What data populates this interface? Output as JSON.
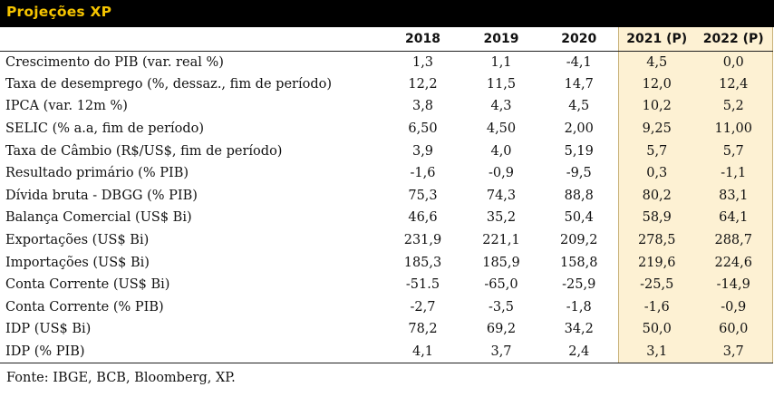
{
  "title": "Projeções XP",
  "columns": [
    "2018",
    "2019",
    "2020",
    "2021 (P)",
    "2022 (P)"
  ],
  "rows": [
    {
      "label": "Crescimento do PIB (var. real %)",
      "values": [
        "1,3",
        "1,1",
        "-4,1",
        "4,5",
        "0,0"
      ]
    },
    {
      "label": "Taxa de desemprego (%, dessaz., fim de período)",
      "values": [
        "12,2",
        "11,5",
        "14,7",
        "12,0",
        "12,4"
      ]
    },
    {
      "label": "IPCA (var. 12m %)",
      "values": [
        "3,8",
        "4,3",
        "4,5",
        "10,2",
        "5,2"
      ]
    },
    {
      "label": "SELIC (% a.a, fim de período)",
      "values": [
        "6,50",
        "4,50",
        "2,00",
        "9,25",
        "11,00"
      ]
    },
    {
      "label": "Taxa de Câmbio (R$/US$, fim de período)",
      "values": [
        "3,9",
        "4,0",
        "5,19",
        "5,7",
        "5,7"
      ]
    },
    {
      "label": "Resultado primário (% PIB)",
      "values": [
        "-1,6",
        "-0,9",
        "-9,5",
        "0,3",
        "-1,1"
      ]
    },
    {
      "label": "Dívida bruta - DBGG (% PIB)",
      "values": [
        "75,3",
        "74,3",
        "88,8",
        "80,2",
        "83,1"
      ]
    },
    {
      "label": "Balança Comercial (US$ Bi)",
      "values": [
        "46,6",
        "35,2",
        "50,4",
        "58,9",
        "64,1"
      ]
    },
    {
      "label": "Exportações (US$ Bi)",
      "values": [
        "231,9",
        "221,1",
        "209,2",
        "278,5",
        "288,7"
      ]
    },
    {
      "label": "Importações (US$ Bi)",
      "values": [
        "185,3",
        "185,9",
        "158,8",
        "219,6",
        "224,6"
      ]
    },
    {
      "label": "Conta Corrente (US$ Bi)",
      "values": [
        "-51.5",
        "-65,0",
        "-25,9",
        "-25,5",
        "-14,9"
      ]
    },
    {
      "label": "Conta Corrente (% PIB)",
      "values": [
        "-2,7",
        "-3,5",
        "-1,8",
        "-1,6",
        "-0,9"
      ]
    },
    {
      "label": "IDP (US$ Bi)",
      "values": [
        "78,2",
        "69,2",
        "34,2",
        "50,0",
        "60,0"
      ]
    },
    {
      "label": "IDP (% PIB)",
      "values": [
        "4,1",
        "3,7",
        "2,4",
        "3,1",
        "3,7"
      ]
    }
  ],
  "source": "Fonte: IBGE, BCB, Bloomberg, XP.",
  "colors": {
    "title_bg": "#000000",
    "title_text": "#f5c400",
    "projection_bg": "#fdf1d3"
  }
}
